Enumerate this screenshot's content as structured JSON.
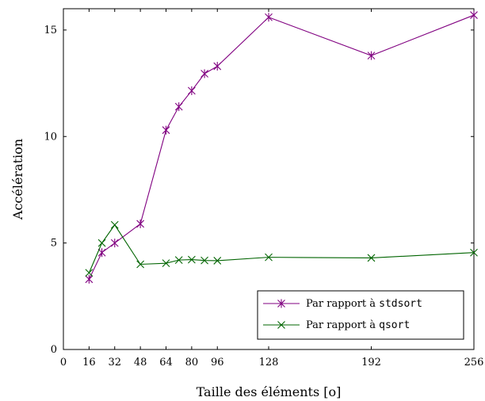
{
  "chart_data": {
    "type": "line",
    "xlabel": "Taille des éléments [o]",
    "ylabel": "Accélération",
    "xlim": [
      0,
      256
    ],
    "ylim": [
      0,
      16
    ],
    "xticks": [
      0,
      16,
      32,
      48,
      64,
      80,
      96,
      128,
      192,
      256
    ],
    "xtick_labels": [
      "0",
      "16",
      "32",
      "48",
      "64",
      "80",
      "96",
      "128",
      "192",
      "256"
    ],
    "yticks": [
      0,
      5,
      10,
      15
    ],
    "ytick_labels": [
      "0",
      "5",
      "10",
      "15"
    ],
    "grid": false,
    "legend_position": "bottom-right",
    "series": [
      {
        "name_prefix": "Par rapport à ",
        "name_code": "stdsort",
        "color": "#800080",
        "marker": "asterisk",
        "x": [
          16,
          24,
          32,
          48,
          64,
          72,
          80,
          88,
          96,
          128,
          192,
          256
        ],
        "y": [
          3.3,
          4.55,
          5.0,
          5.9,
          10.3,
          11.4,
          12.15,
          12.95,
          13.3,
          15.6,
          13.8,
          15.7
        ]
      },
      {
        "name_prefix": "Par rapport à ",
        "name_code": "qsort",
        "color": "#006400",
        "marker": "x",
        "x": [
          16,
          24,
          32,
          48,
          64,
          72,
          80,
          88,
          96,
          128,
          192,
          256
        ],
        "y": [
          3.6,
          5.0,
          5.85,
          4.0,
          4.05,
          4.2,
          4.22,
          4.18,
          4.17,
          4.33,
          4.3,
          4.55
        ]
      }
    ]
  }
}
